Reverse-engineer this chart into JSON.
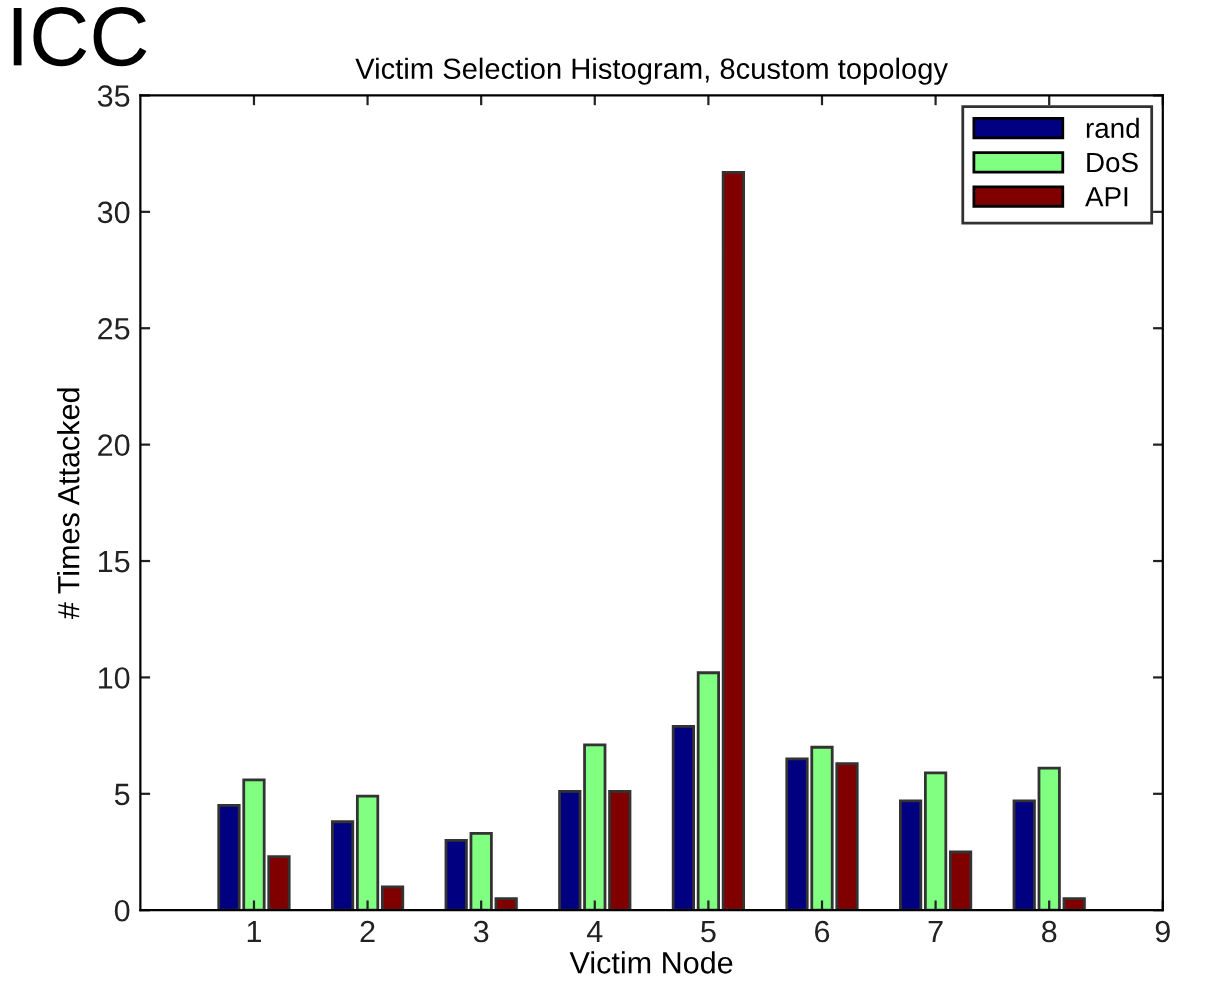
{
  "chart_data": {
    "type": "bar",
    "title": "Victim Selection Histogram, 8custom topology",
    "xlabel": "Victim Node",
    "ylabel": "# Times Attacked",
    "annotations": [
      "ICC"
    ],
    "x": [
      1,
      2,
      3,
      4,
      5,
      6,
      7,
      8
    ],
    "series": [
      {
        "name": "rand",
        "color": "#000080",
        "values": [
          4.5,
          3.8,
          3.0,
          5.1,
          7.9,
          6.5,
          4.7,
          4.7
        ]
      },
      {
        "name": "DoS",
        "color": "#80ff80",
        "values": [
          5.6,
          4.9,
          3.3,
          7.1,
          10.2,
          7.0,
          5.9,
          6.1
        ]
      },
      {
        "name": "API",
        "color": "#800000",
        "values": [
          2.3,
          1.0,
          0.5,
          5.1,
          31.7,
          6.3,
          2.5,
          0.5
        ]
      }
    ],
    "xlim": [
      0,
      9
    ],
    "xticks": [
      1,
      2,
      3,
      4,
      5,
      6,
      7,
      8,
      9
    ],
    "ylim": [
      0,
      35
    ],
    "yticks": [
      0,
      5,
      10,
      15,
      20,
      25,
      30,
      35
    ],
    "grid": false,
    "legend": "top right"
  }
}
